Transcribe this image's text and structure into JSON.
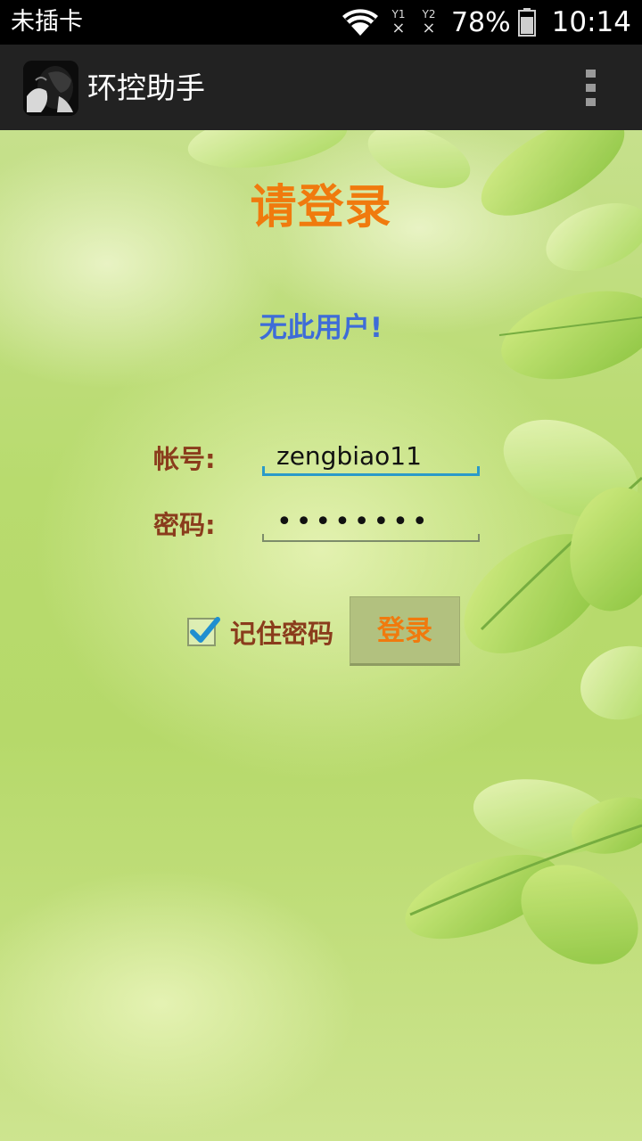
{
  "status_bar": {
    "carrier": "未插卡",
    "sim1_label": "Y1",
    "sim2_label": "Y2",
    "sim_state": "×",
    "battery_percent": "78%",
    "time": "10:14"
  },
  "action_bar": {
    "title": "环控助手"
  },
  "login": {
    "title": "请登录",
    "error_message": "无此用户!",
    "account_label": "帐号:",
    "account_value": "zengbiao11",
    "password_label": "密码:",
    "password_value": "••••••••",
    "remember_label": "记住密码",
    "remember_checked": true,
    "login_button": "登录"
  },
  "colors": {
    "title": "#f07a0e",
    "error": "#3e6cd8",
    "label": "#8a3c1c",
    "input_focus": "#2a9ac9"
  }
}
